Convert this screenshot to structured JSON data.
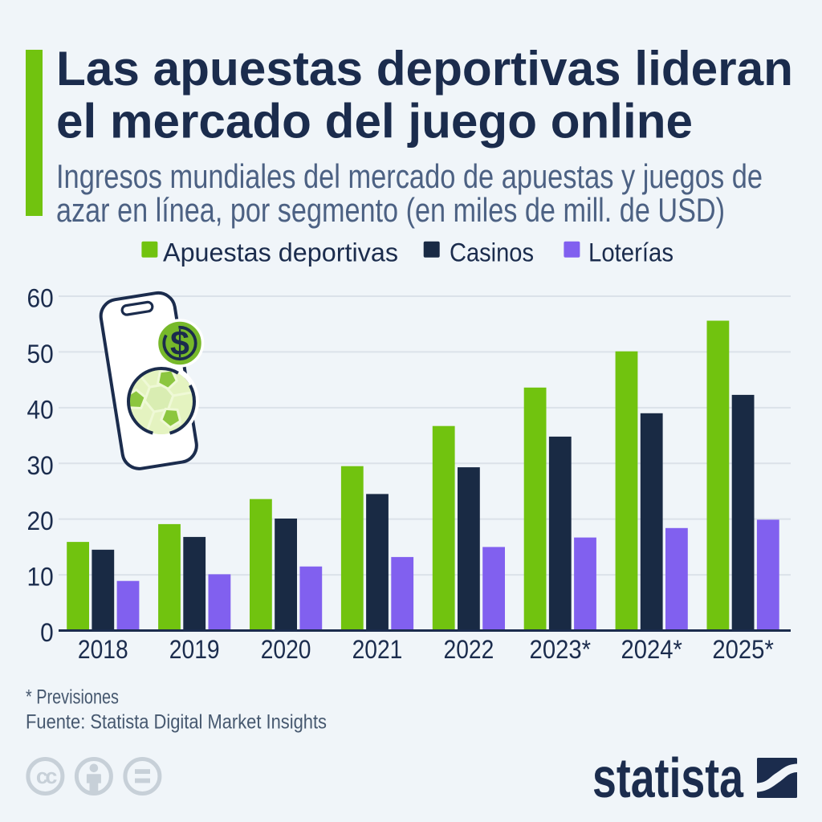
{
  "header": {
    "title_line1": "Las apuestas deportivas lideran",
    "title_line2": "el mercado del juego online",
    "subtitle_line1": "Ingresos mundiales del mercado de apuestas y juegos de",
    "subtitle_line2": "azar en línea, por segmento (en miles de mill. de USD)"
  },
  "legend": [
    {
      "label": "Apuestas deportivas",
      "color": "#71c30f"
    },
    {
      "label": "Casinos",
      "color": "#192a44"
    },
    {
      "label": "Loterías",
      "color": "#8160ef"
    }
  ],
  "chart_data": {
    "type": "bar",
    "title": "Las apuestas deportivas lideran el mercado del juego online",
    "subtitle": "Ingresos mundiales del mercado de apuestas y juegos de azar en línea, por segmento (en miles de mill. de USD)",
    "categories": [
      "2018",
      "2019",
      "2020",
      "2021",
      "2022",
      "2023*",
      "2024*",
      "2025*"
    ],
    "series": [
      {
        "name": "Apuestas deportivas",
        "color": "#71c30f",
        "values": [
          15.9,
          19.1,
          23.6,
          29.5,
          36.7,
          43.6,
          50.1,
          55.6
        ]
      },
      {
        "name": "Casinos",
        "color": "#192a44",
        "values": [
          14.5,
          16.8,
          20.1,
          24.5,
          29.3,
          34.8,
          39.0,
          42.3
        ]
      },
      {
        "name": "Loterías",
        "color": "#8160ef",
        "values": [
          8.9,
          10.1,
          11.5,
          13.2,
          15.0,
          16.7,
          18.4,
          19.9
        ]
      }
    ],
    "xlabel": "",
    "ylabel": "",
    "ylim": [
      0,
      60
    ],
    "yticks": [
      0,
      10,
      20,
      30,
      40,
      50,
      60
    ],
    "grid": true,
    "legend_position": "top"
  },
  "illustration": {
    "name": "smartphone with dollar coin and soccer ball",
    "dollar_sign": "$"
  },
  "footnotes": {
    "asterisk_note": "* Previsiones",
    "source": "Fuente: Statista Digital Market Insights"
  },
  "footer": {
    "license_icons": [
      "cc",
      "attribution-person",
      "equals"
    ],
    "brand": "statista"
  },
  "colors": {
    "background": "#f0f5f9",
    "title": "#1b2c4d",
    "subtitle": "#4c6183",
    "green": "#71c30f",
    "navy": "#192a44",
    "purple": "#8160ef",
    "gridline": "#dbe2e9",
    "axis_line": "#1b2c4d",
    "footnote": "#46586f",
    "license_grey": "#c7d0d8"
  }
}
